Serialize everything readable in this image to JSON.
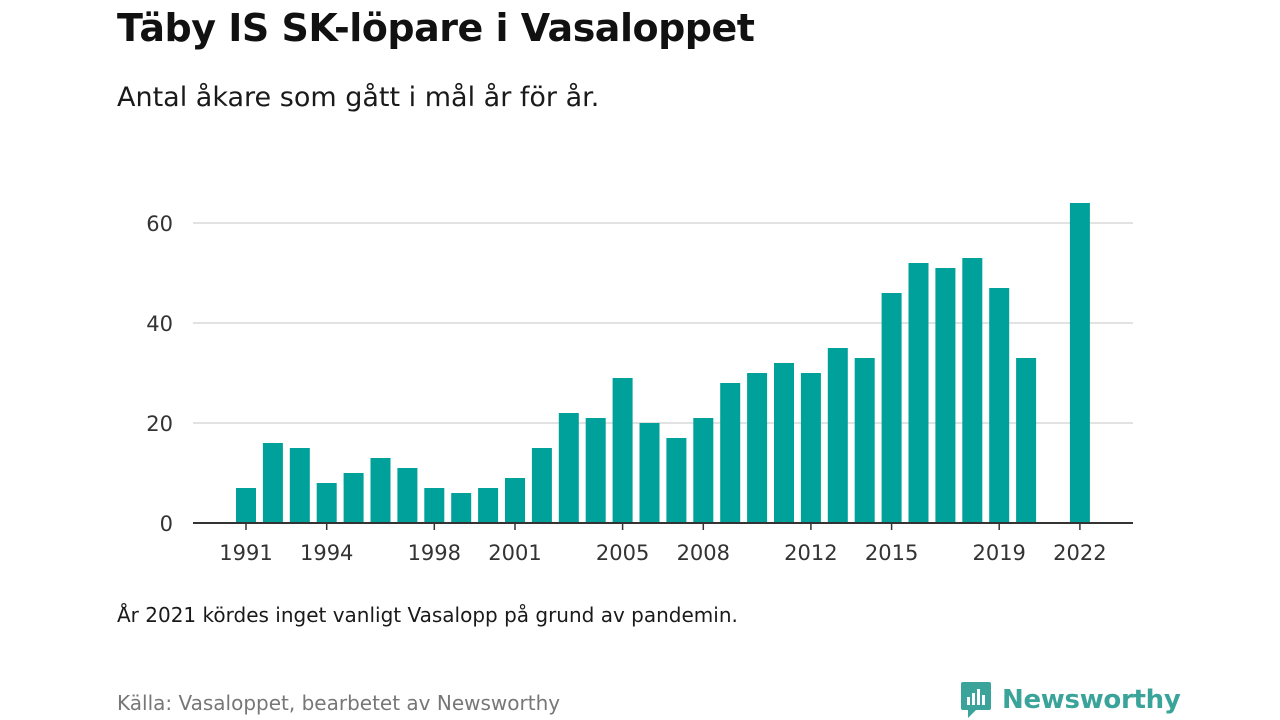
{
  "header": {
    "title": "Täby IS SK-löpare i Vasaloppet",
    "subtitle": "Antal åkare som gått i mål år för år."
  },
  "footer": {
    "note": "År 2021 kördes inget vanligt Vasalopp på grund av pandemin.",
    "source": "Källa: Vasaloppet, bearbetet av Newsworthy",
    "brand": "Newsworthy"
  },
  "colors": {
    "bar": "#00a19a",
    "grid": "#d9d9d9",
    "axis": "#333333",
    "brand": "#3aa39a"
  },
  "icons": {
    "brand_logo": "newsworthy-logo-icon"
  },
  "chart_data": {
    "type": "bar",
    "title": "Täby IS SK-löpare i Vasaloppet",
    "subtitle": "Antal åkare som gått i mål år för år.",
    "xlabel": "",
    "ylabel": "",
    "ylim": [
      0,
      70
    ],
    "yticks": [
      0,
      20,
      40,
      60
    ],
    "xticks": [
      1991,
      1994,
      1998,
      2001,
      2005,
      2008,
      2012,
      2015,
      2019,
      2022
    ],
    "grid": true,
    "legend": "none",
    "categories": [
      1991,
      1992,
      1993,
      1994,
      1995,
      1996,
      1997,
      1998,
      1999,
      2000,
      2001,
      2002,
      2003,
      2004,
      2005,
      2006,
      2007,
      2008,
      2009,
      2010,
      2011,
      2012,
      2013,
      2014,
      2015,
      2016,
      2017,
      2018,
      2019,
      2020,
      2021,
      2022
    ],
    "values": [
      7,
      16,
      15,
      8,
      10,
      13,
      11,
      7,
      6,
      7,
      9,
      15,
      22,
      21,
      29,
      20,
      17,
      21,
      28,
      30,
      32,
      30,
      35,
      33,
      46,
      52,
      51,
      53,
      47,
      33,
      null,
      64
    ]
  }
}
